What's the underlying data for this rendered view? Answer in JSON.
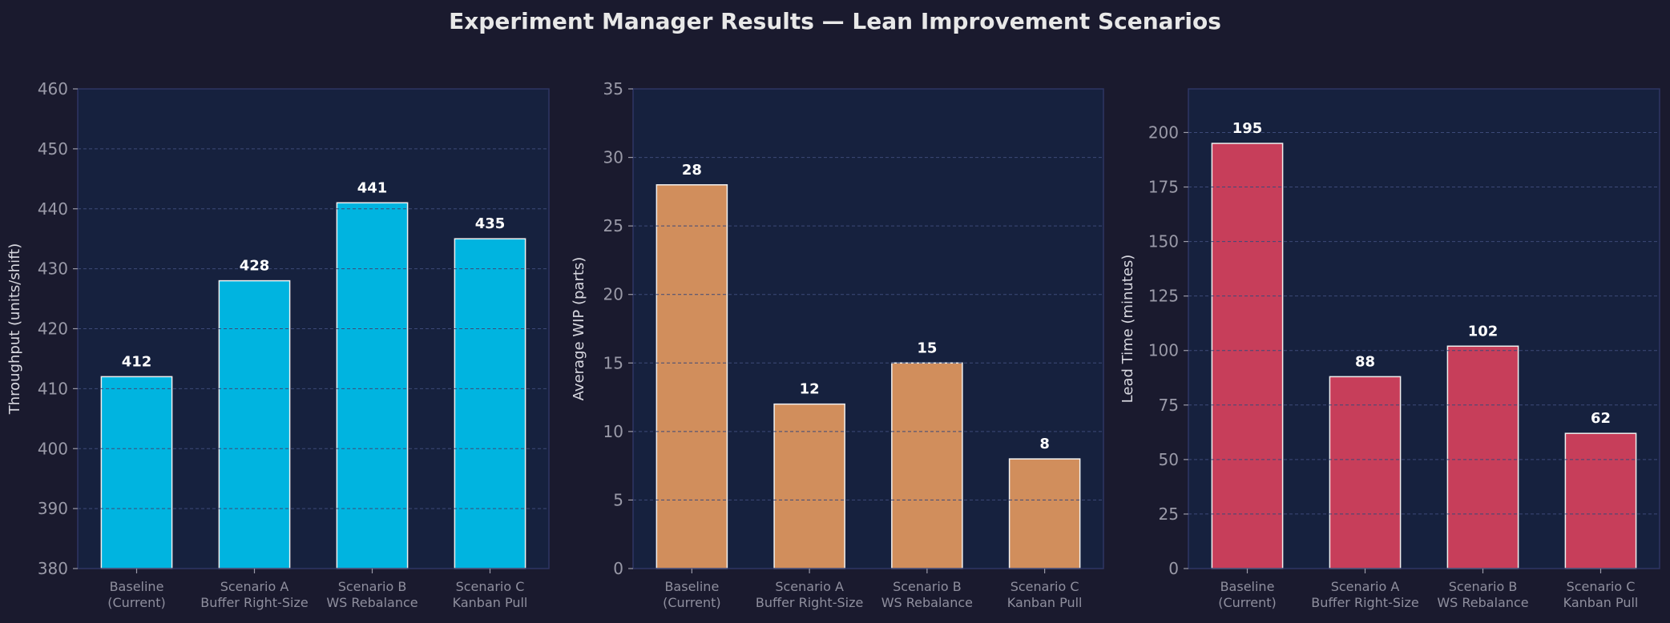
{
  "title": "Experiment Manager Results — Lean Improvement Scenarios",
  "colors": {
    "background": "#1a1a2e",
    "plot_background": "#16213e",
    "throughput": "#00b4e0",
    "wip": "#d18e5c",
    "lead_time": "#c73e5a"
  },
  "chart_data": [
    {
      "type": "bar",
      "categories": [
        "Baseline\n(Current)",
        "Scenario A\nBuffer Right-Size",
        "Scenario B\nWS Rebalance",
        "Scenario C\nKanban Pull"
      ],
      "values": [
        412,
        428,
        441,
        435
      ],
      "xlabel": "",
      "ylabel": "Throughput (units/shift)",
      "ylim": [
        380,
        460
      ],
      "yticks": [
        380,
        390,
        400,
        410,
        420,
        430,
        440,
        450,
        460
      ],
      "color": "#00b4e0",
      "grid": true
    },
    {
      "type": "bar",
      "categories": [
        "Baseline\n(Current)",
        "Scenario A\nBuffer Right-Size",
        "Scenario B\nWS Rebalance",
        "Scenario C\nKanban Pull"
      ],
      "values": [
        28,
        12,
        15,
        8
      ],
      "xlabel": "",
      "ylabel": "Average WIP (parts)",
      "ylim": [
        0,
        35
      ],
      "yticks": [
        0,
        5,
        10,
        15,
        20,
        25,
        30,
        35
      ],
      "color": "#d18e5c",
      "grid": true
    },
    {
      "type": "bar",
      "categories": [
        "Baseline\n(Current)",
        "Scenario A\nBuffer Right-Size",
        "Scenario B\nWS Rebalance",
        "Scenario C\nKanban Pull"
      ],
      "values": [
        195,
        88,
        102,
        62
      ],
      "xlabel": "",
      "ylabel": "Lead Time (minutes)",
      "ylim": [
        0,
        220
      ],
      "yticks": [
        0,
        25,
        50,
        75,
        100,
        125,
        150,
        175,
        200
      ],
      "color": "#c73e5a",
      "grid": true
    }
  ]
}
